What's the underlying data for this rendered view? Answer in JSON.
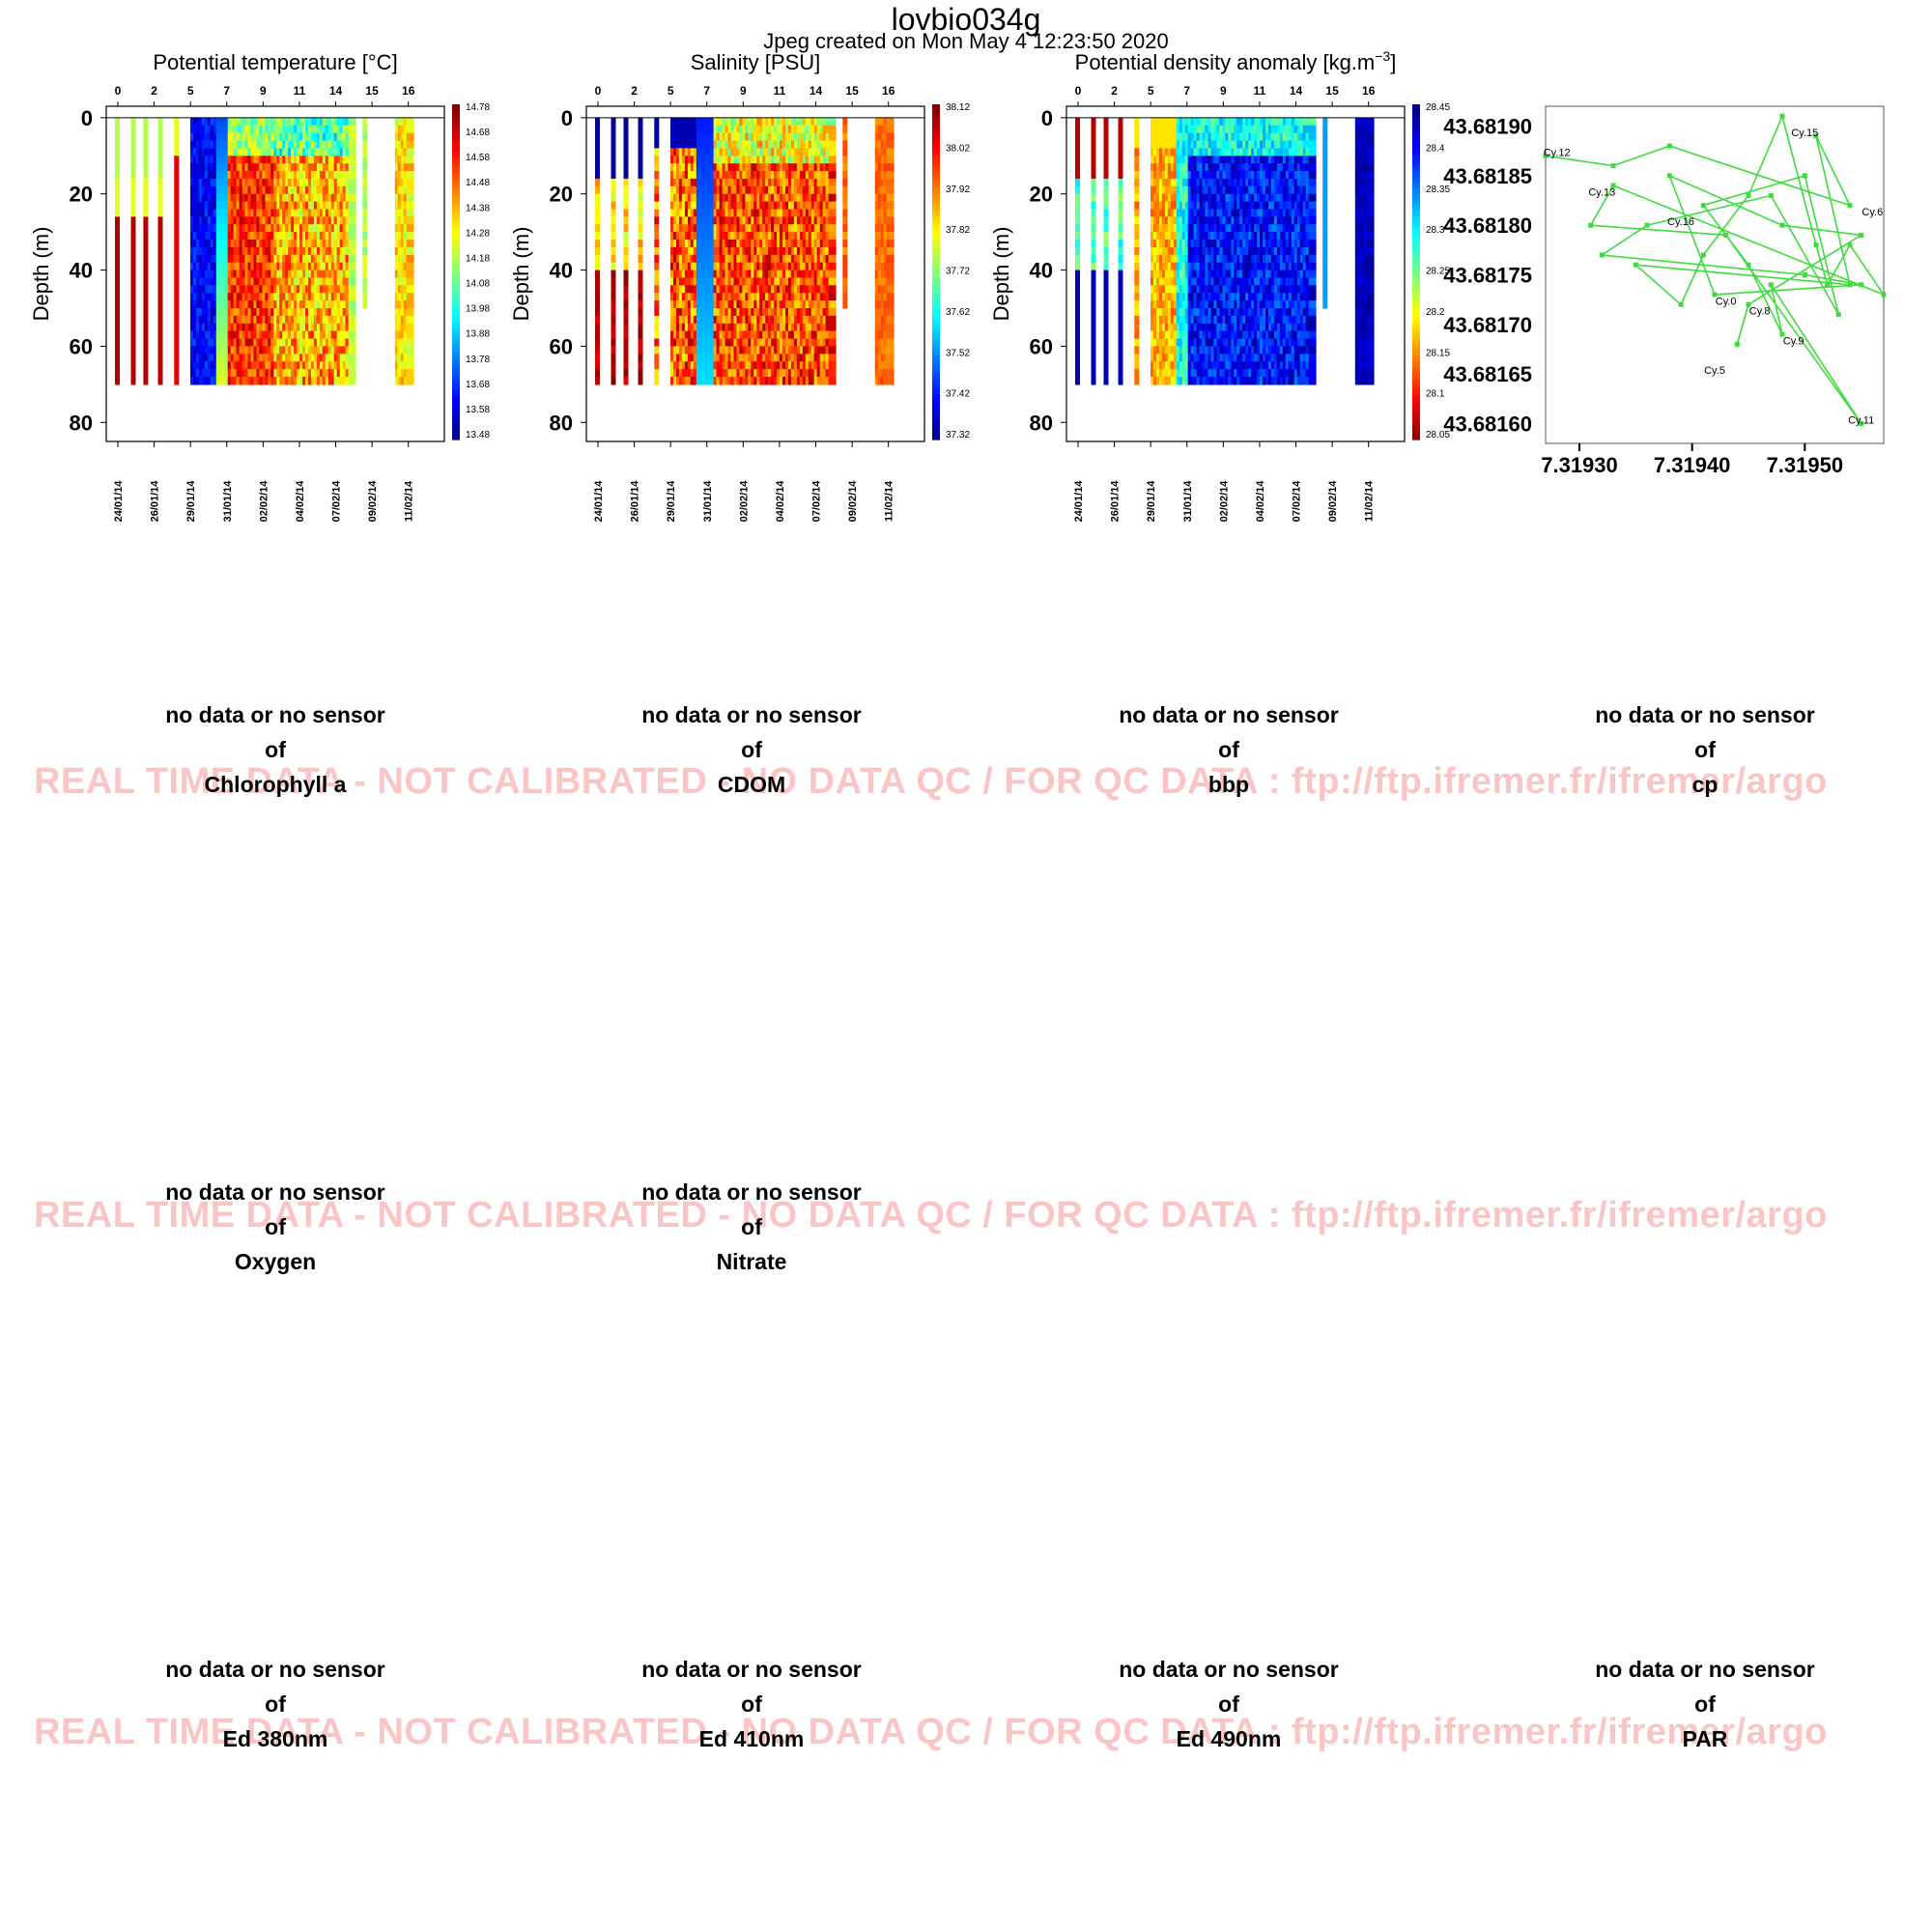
{
  "header": {
    "title": "lovbio034g",
    "subtitle": "Jpeg created on  Mon May  4 12:23:50 2020"
  },
  "watermark": "REAL TIME DATA - NOT CALIBRATED - NO DATA QC   /  FOR QC DATA : ftp://ftp.ifremer.fr/ifremer/argo",
  "chart_data": [
    {
      "type": "heatmap",
      "title": "Potential temperature [°C]",
      "ylabel": "Depth (m)",
      "ylim": [
        85,
        -3
      ],
      "yticks": [
        0,
        20,
        40,
        60,
        80
      ],
      "top_ticks": [
        "0",
        "2",
        "5",
        "7",
        "9",
        "11",
        "14",
        "15",
        "16"
      ],
      "date_ticks": [
        "24/01/14",
        "26/01/14",
        "29/01/14",
        "31/01/14",
        "02/02/14",
        "04/02/14",
        "07/02/14",
        "09/02/14",
        "11/02/14"
      ],
      "colorbar": [
        "14.78",
        "14.68",
        "14.58",
        "14.48",
        "14.38",
        "14.28",
        "14.18",
        "14.08",
        "13.98",
        "13.88",
        "13.78",
        "13.68",
        "13.58",
        "13.48"
      ],
      "colorbar_reversed": false,
      "value_range": [
        13.48,
        14.78
      ]
    },
    {
      "type": "heatmap",
      "title": "Salinity [PSU]",
      "ylabel": "Depth (m)",
      "ylim": [
        85,
        -3
      ],
      "yticks": [
        0,
        20,
        40,
        60,
        80
      ],
      "top_ticks": [
        "0",
        "2",
        "5",
        "7",
        "9",
        "11",
        "14",
        "15",
        "16"
      ],
      "date_ticks": [
        "24/01/14",
        "26/01/14",
        "29/01/14",
        "31/01/14",
        "02/02/14",
        "04/02/14",
        "07/02/14",
        "09/02/14",
        "11/02/14"
      ],
      "colorbar": [
        "38.12",
        "38.02",
        "37.92",
        "37.82",
        "37.72",
        "37.62",
        "37.52",
        "37.42",
        "37.32"
      ],
      "colorbar_reversed": false,
      "value_range": [
        37.32,
        38.12
      ]
    },
    {
      "type": "heatmap",
      "title": "Potential density anomaly [kg.m",
      "title_sup": "−3",
      "title_end": "]",
      "ylabel": "Depth (m)",
      "ylim": [
        85,
        -3
      ],
      "yticks": [
        0,
        20,
        40,
        60,
        80
      ],
      "top_ticks": [
        "0",
        "2",
        "5",
        "7",
        "9",
        "11",
        "14",
        "15",
        "16"
      ],
      "date_ticks": [
        "24/01/14",
        "26/01/14",
        "29/01/14",
        "31/01/14",
        "02/02/14",
        "04/02/14",
        "07/02/14",
        "09/02/14",
        "11/02/14"
      ],
      "colorbar": [
        "28.45",
        "28.4",
        "28.35",
        "28.3",
        "28.25",
        "28.2",
        "28.15",
        "28.1",
        "28.05"
      ],
      "colorbar_reversed": true,
      "value_range": [
        28.05,
        28.45
      ]
    },
    {
      "type": "line",
      "title": "",
      "xlim": [
        7.31927,
        7.31957
      ],
      "ylim": [
        43.68158,
        43.68192
      ],
      "xticks": [
        "7.31930",
        "7.31940",
        "7.31950"
      ],
      "yticks": [
        "43.68190",
        "43.68185",
        "43.68180",
        "43.68175",
        "43.68170",
        "43.68165",
        "43.68160"
      ],
      "color": "#3ddc3d",
      "track": [
        [
          7.31927,
          43.68187
        ],
        [
          7.31933,
          43.68186
        ],
        [
          7.31938,
          43.68188
        ],
        [
          7.31954,
          43.68182
        ],
        [
          7.31951,
          43.68189
        ],
        [
          7.31954,
          43.68174
        ],
        [
          7.31935,
          43.68176
        ],
        [
          7.31939,
          43.68172
        ],
        [
          7.31941,
          43.68177
        ],
        [
          7.31945,
          43.68183
        ],
        [
          7.31948,
          43.68191
        ],
        [
          7.31951,
          43.68178
        ],
        [
          7.31952,
          43.68174
        ],
        [
          7.31954,
          43.68178
        ],
        [
          7.31957,
          43.68173
        ],
        [
          7.31933,
          43.68184
        ],
        [
          7.31931,
          43.6818
        ],
        [
          7.31943,
          43.68179
        ],
        [
          7.31955,
          43.6816
        ],
        [
          7.31947,
          43.68174
        ],
        [
          7.31948,
          43.68169
        ],
        [
          7.31945,
          43.68176
        ],
        [
          7.31941,
          43.68182
        ],
        [
          7.3195,
          43.68185
        ],
        [
          7.31953,
          43.68171
        ],
        [
          7.31947,
          43.68183
        ],
        [
          7.31936,
          43.6818
        ],
        [
          7.31932,
          43.68177
        ],
        [
          7.3195,
          43.68175
        ],
        [
          7.31955,
          43.68174
        ],
        [
          7.31942,
          43.68173
        ],
        [
          7.31938,
          43.68185
        ],
        [
          7.31948,
          43.6818
        ],
        [
          7.31955,
          43.68179
        ],
        [
          7.31945,
          43.68172
        ],
        [
          7.31944,
          43.68168
        ]
      ],
      "cycle_labels": [
        {
          "label": "Cy.12",
          "x": 7.31928,
          "y": 43.68187
        },
        {
          "label": "Cy.15",
          "x": 7.3195,
          "y": 43.68189
        },
        {
          "label": "Cy.13",
          "x": 7.31932,
          "y": 43.68183
        },
        {
          "label": "Cy.6",
          "x": 7.31956,
          "y": 43.68181
        },
        {
          "label": "Cy.16",
          "x": 7.31939,
          "y": 43.6818
        },
        {
          "label": "Cy.0",
          "x": 7.31943,
          "y": 43.68172
        },
        {
          "label": "Cy.8",
          "x": 7.31946,
          "y": 43.68171
        },
        {
          "label": "Cy.9",
          "x": 7.31949,
          "y": 43.68168
        },
        {
          "label": "Cy.5",
          "x": 7.31942,
          "y": 43.68165
        },
        {
          "label": "Cy.11",
          "x": 7.31955,
          "y": 43.6816
        }
      ]
    }
  ],
  "no_data_panels": {
    "line1": "no data or no sensor",
    "line2": "of",
    "items": [
      "Chlorophyll a",
      "CDOM",
      "bbp",
      "cp",
      "Oxygen",
      "Nitrate",
      "Ed 380nm",
      "Ed 410nm",
      "Ed 490nm",
      "PAR"
    ]
  }
}
